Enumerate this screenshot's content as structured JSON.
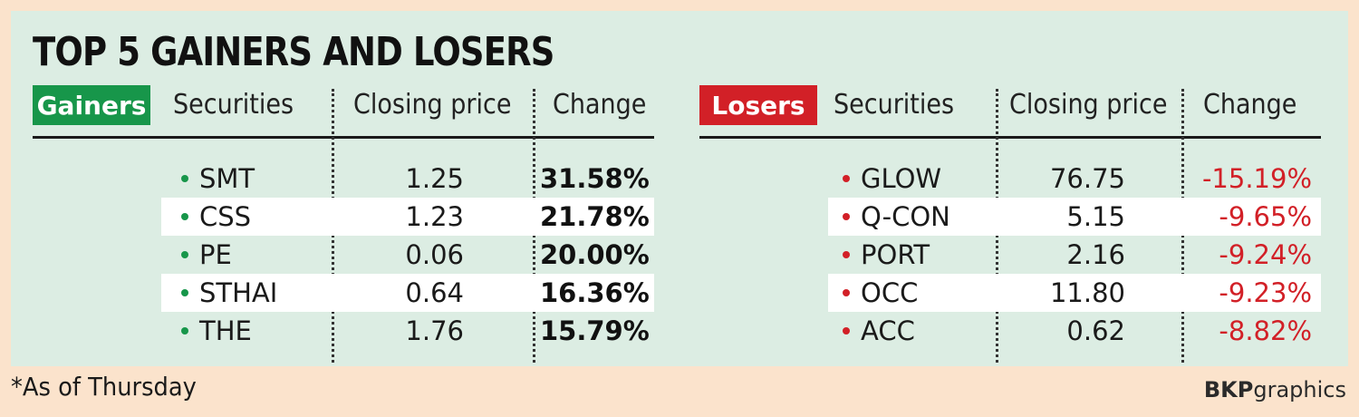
{
  "title": "TOP 5 GAINERS AND LOSERS",
  "gainers": {
    "tag": "Gainers",
    "headers": {
      "securities": "Securities",
      "closing": "Closing price",
      "change": "Change"
    },
    "rows": [
      {
        "security": "SMT",
        "price": "1.25",
        "change": "31.58%"
      },
      {
        "security": "CSS",
        "price": "1.23",
        "change": "21.78%"
      },
      {
        "security": "PE",
        "price": "0.06",
        "change": "20.00%"
      },
      {
        "security": "STHAI",
        "price": "0.64",
        "change": "16.36%"
      },
      {
        "security": "THE",
        "price": "1.76",
        "change": "15.79%"
      }
    ]
  },
  "losers": {
    "tag": "Losers",
    "headers": {
      "securities": "Securities",
      "closing": "Closing price",
      "change": "Change"
    },
    "rows": [
      {
        "security": "GLOW",
        "price": "76.75",
        "change": "-15.19%"
      },
      {
        "security": "Q-CON",
        "price": "5.15",
        "change": "-9.65%"
      },
      {
        "security": "PORT",
        "price": "2.16",
        "change": "-9.24%"
      },
      {
        "security": "OCC",
        "price": "11.80",
        "change": "-9.23%"
      },
      {
        "security": "ACC",
        "price": "0.62",
        "change": "-8.82%"
      }
    ]
  },
  "footnote": "*As of Thursday",
  "credit": {
    "bold": "BKP",
    "rest": "graphics"
  },
  "colors": {
    "gain": "#17964a",
    "loss": "#d22027",
    "panel": "#dcede3",
    "page": "#fbe3cc"
  }
}
